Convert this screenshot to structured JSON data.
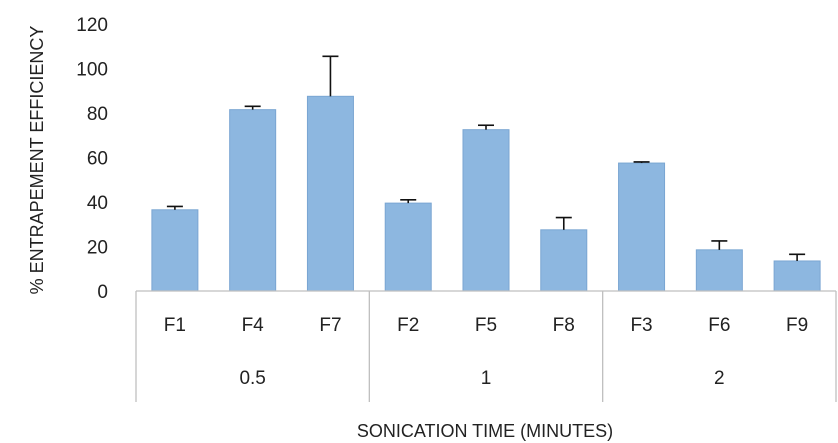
{
  "chart_data": {
    "type": "bar",
    "categories": [
      "F1",
      "F4",
      "F7",
      "F2",
      "F5",
      "F8",
      "F3",
      "F6",
      "F9"
    ],
    "groups": [
      {
        "label": "0.5",
        "categories": [
          "F1",
          "F4",
          "F7"
        ]
      },
      {
        "label": "1",
        "categories": [
          "F2",
          "F5",
          "F8"
        ]
      },
      {
        "label": "2",
        "categories": [
          "F3",
          "F6",
          "F9"
        ]
      }
    ],
    "values": [
      36.5,
      81.5,
      87.5,
      39.5,
      72.5,
      27.5,
      57.5,
      18.5,
      13.5
    ],
    "error_plus": [
      1.5,
      1.5,
      18,
      1.5,
      2,
      5.5,
      0.5,
      4,
      3
    ],
    "title": "",
    "xlabel": "SONICATION TIME (MINUTES)",
    "ylabel": "% ENTRAPEMENT EFFICIENCY",
    "ylim": [
      0,
      120
    ],
    "yticks": [
      0,
      20,
      40,
      60,
      80,
      100,
      120
    ],
    "grid": false,
    "legend": "none",
    "colors": {
      "bar": "#8DB7E0",
      "bar_edge": "#7AA6D2",
      "axis": "#BFBFBF",
      "error_bar": "#111111",
      "text": "#222222"
    }
  }
}
